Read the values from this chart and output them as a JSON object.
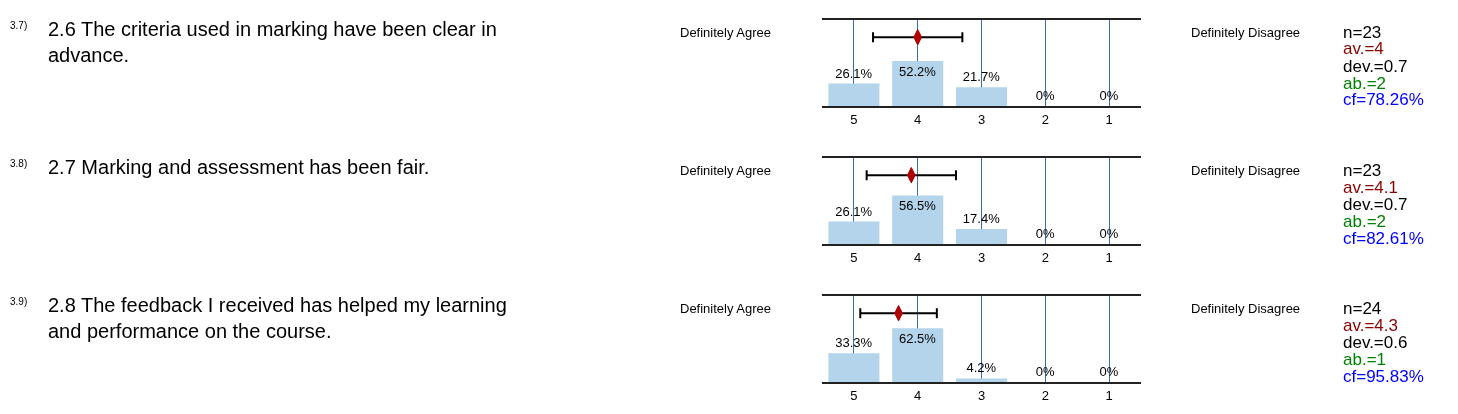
{
  "chart_data": [
    {
      "type": "bar",
      "xlim": [
        5.5,
        0.5
      ],
      "xticks": [
        5,
        4,
        3,
        2,
        1
      ],
      "ylim": [
        0,
        100
      ],
      "grid": "x",
      "tick_labels": "x",
      "series": [
        {
          "x": [
            5,
            4,
            3,
            2,
            1
          ],
          "values": [
            26.1,
            52.2,
            21.7,
            0,
            0
          ],
          "value_labels": [
            "26.1%",
            "52.2%",
            "21.7%",
            "0%",
            "0%"
          ],
          "color": "#b3d4ea"
        },
        {
          "type": "scatter",
          "x": [
            4
          ],
          "values": [
            80
          ],
          "xerrors": [
            0.7
          ],
          "color": "#b00000",
          "marker": "diamond"
        }
      ],
      "annotations": [
        "3.7)",
        "2.6 The criteria used in marking have been clear in advance.",
        "Definitely Agree",
        "Definitely Disagree",
        "n=23",
        "av.=4",
        "dev.=0.7",
        "ab.=2",
        "cf=78.26%"
      ]
    },
    {
      "type": "bar",
      "xlim": [
        5.5,
        0.5
      ],
      "xticks": [
        5,
        4,
        3,
        2,
        1
      ],
      "ylim": [
        0,
        100
      ],
      "grid": "x",
      "tick_labels": "x",
      "series": [
        {
          "x": [
            5,
            4,
            3,
            2,
            1
          ],
          "values": [
            26.1,
            56.5,
            17.4,
            0,
            0
          ],
          "value_labels": [
            "26.1%",
            "56.5%",
            "17.4%",
            "0%",
            "0%"
          ],
          "color": "#b3d4ea"
        },
        {
          "type": "scatter",
          "x": [
            4.1
          ],
          "values": [
            80
          ],
          "xerrors": [
            0.7
          ],
          "color": "#b00000",
          "marker": "diamond"
        }
      ],
      "annotations": [
        "3.8)",
        "2.7 Marking and assessment has been fair.",
        "Definitely Agree",
        "Definitely Disagree",
        "n=23",
        "av.=4.1",
        "dev.=0.7",
        "ab.=2",
        "cf=82.61%"
      ]
    },
    {
      "type": "bar",
      "xlim": [
        5.5,
        0.5
      ],
      "xticks": [
        5,
        4,
        3,
        2,
        1
      ],
      "ylim": [
        0,
        100
      ],
      "grid": "x",
      "tick_labels": "x",
      "series": [
        {
          "x": [
            5,
            4,
            3,
            2,
            1
          ],
          "values": [
            33.3,
            62.5,
            4.2,
            0,
            0
          ],
          "value_labels": [
            "33.3%",
            "62.5%",
            "4.2%",
            "0%",
            "0%"
          ],
          "color": "#b3d4ea"
        },
        {
          "type": "scatter",
          "x": [
            4.3
          ],
          "values": [
            80
          ],
          "xerrors": [
            0.6
          ],
          "color": "#b00000",
          "marker": "diamond"
        }
      ],
      "annotations": [
        "3.9)",
        "2.8 The feedback I received has helped my learning and performance on the course.",
        "Definitely Agree",
        "Definitely Disagree",
        "n=24",
        "av.=4.3",
        "dev.=0.6",
        "ab.=1",
        "cf=95.83%"
      ]
    }
  ]
}
